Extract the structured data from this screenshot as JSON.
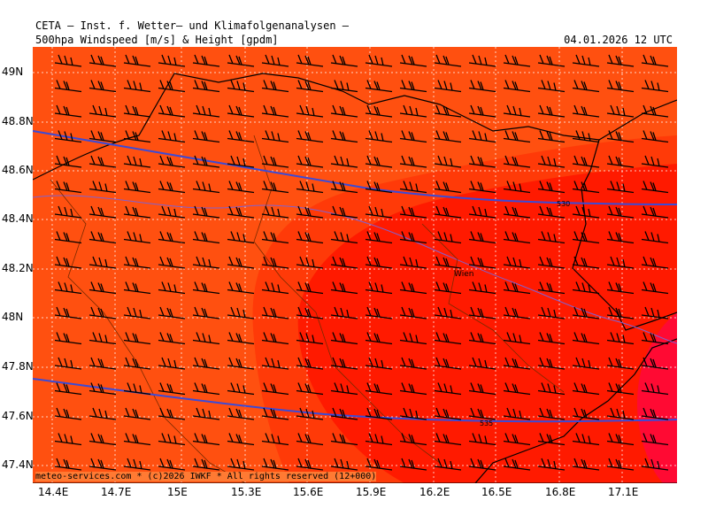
{
  "header": {
    "institute": "CETA – Inst. f. Wetter– und Klimafolgenanalysen –",
    "product": "500hpa Windspeed [m/s] & Height [gpdm]",
    "valid_time": "04.01.2026 12 UTC"
  },
  "footer": {
    "copyright": "meteo-services.com * (c)2026 IWKF * All rights reserved (12+000)"
  },
  "axes": {
    "lon_labels": [
      "14.4E",
      "14.7E",
      "15E",
      "15.3E",
      "15.6E",
      "15.9E",
      "16.2E",
      "16.5E",
      "16.8E",
      "17.1E"
    ],
    "lat_labels": [
      "49N",
      "48.8N",
      "48.6N",
      "48.4N",
      "48.2N",
      "48N",
      "47.8N",
      "47.6N",
      "47.4N"
    ]
  },
  "map_labels": {
    "city": "Wien"
  },
  "contours": [
    {
      "label": "530",
      "color": "#3a4bd8"
    },
    {
      "label": "535",
      "color": "#3a4bd8"
    }
  ],
  "colors": {
    "field_orange": "#ff5010",
    "field_redorange": "#ff3a08",
    "field_red": "#ff1a00",
    "field_crimson": "#ff0a33",
    "border": "#000000",
    "grid": "#ffffff"
  }
}
